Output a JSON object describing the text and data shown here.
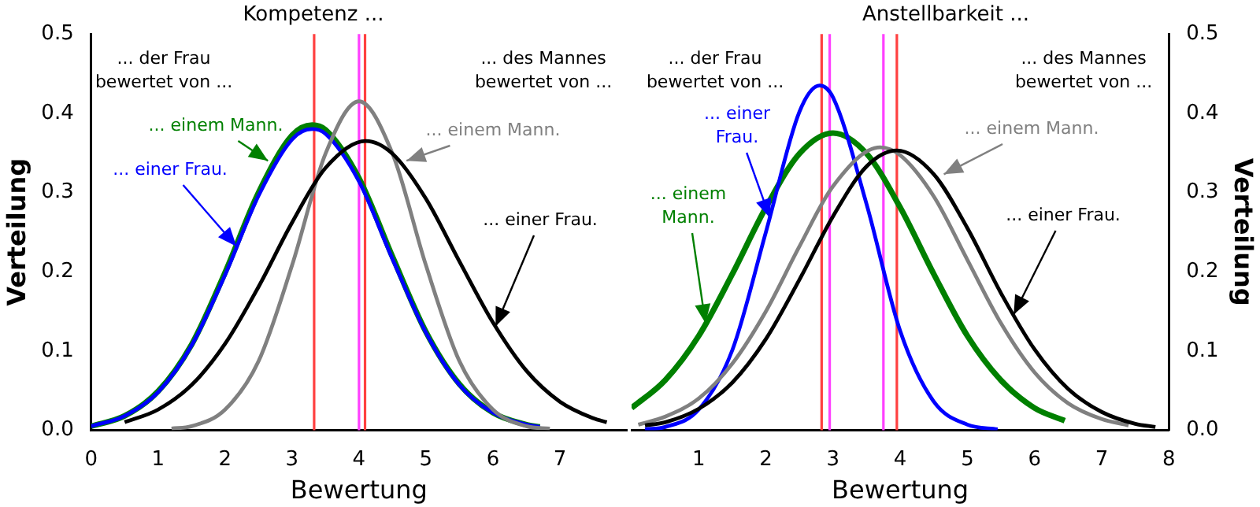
{
  "chart_data": [
    {
      "type": "line",
      "title": "Kompetenz ...",
      "xlabel": "Bewertung",
      "ylabel": "Verteilung",
      "xlim": [
        0,
        8
      ],
      "xticks": [
        0,
        1,
        2,
        3,
        4,
        5,
        6,
        7
      ],
      "ylim": [
        0,
        0.5
      ],
      "yticks": [
        {
          "value": 0,
          "label": "0.0"
        },
        0.1,
        0.2,
        0.3,
        0.4,
        0.5
      ],
      "grid": false,
      "legend": false,
      "series": [
        {
          "color": "#008000",
          "x": [
            0,
            0.5,
            1,
            1.5,
            2,
            2.5,
            3,
            3.3,
            3.5,
            4,
            4.5,
            5,
            5.5,
            6,
            6.5,
            6.7
          ],
          "values": [
            0.005,
            0.018,
            0.049,
            0.108,
            0.199,
            0.3,
            0.372,
            0.385,
            0.379,
            0.318,
            0.219,
            0.124,
            0.058,
            0.022,
            0.007,
            0.004
          ]
        },
        {
          "color": "#0000ff",
          "x": [
            0,
            0.5,
            1,
            1.5,
            2,
            2.5,
            3,
            3.3,
            3.5,
            4,
            4.5,
            5,
            5.5,
            6,
            6.5,
            6.7
          ],
          "values": [
            0.005,
            0.018,
            0.048,
            0.107,
            0.196,
            0.296,
            0.367,
            0.38,
            0.374,
            0.314,
            0.216,
            0.123,
            0.057,
            0.022,
            0.007,
            0.004
          ]
        },
        {
          "color": "#808080",
          "x": [
            1.2,
            1.5,
            2,
            2.5,
            3,
            3.5,
            4,
            4.5,
            5,
            5.5,
            6,
            6.5,
            6.85
          ],
          "values": [
            0.002,
            0.005,
            0.026,
            0.087,
            0.208,
            0.349,
            0.415,
            0.349,
            0.208,
            0.087,
            0.026,
            0.005,
            0.002
          ]
        },
        {
          "color": "#000000",
          "x": [
            0.5,
            1,
            1.5,
            2,
            2.5,
            3,
            3.5,
            4.1,
            4.5,
            5,
            5.5,
            6,
            6.5,
            7,
            7.5,
            7.7
          ],
          "values": [
            0.01,
            0.026,
            0.057,
            0.109,
            0.181,
            0.262,
            0.331,
            0.365,
            0.349,
            0.292,
            0.213,
            0.136,
            0.075,
            0.036,
            0.015,
            0.01
          ]
        }
      ],
      "ref_lines": [
        {
          "axis": "x",
          "value": 3.33,
          "color": "#ff4040"
        },
        {
          "axis": "x",
          "value": 4.0,
          "color": "#ff40ff"
        },
        {
          "axis": "x",
          "value": 4.09,
          "color": "#ff4040"
        }
      ],
      "annotations": [
        "... der Frau bewertet von ...",
        {
          "text": "... einem Mann.",
          "x": 2.64,
          "y": 0.34
        },
        {
          "text": "... einer Frau.",
          "x": 2.17,
          "y": 0.232
        },
        "... des Mannes bewertet von ...",
        {
          "text": "... einem Mann.",
          "x": 4.71,
          "y": 0.34
        },
        {
          "text": "... einer Frau.",
          "x": 6.04,
          "y": 0.131
        }
      ]
    },
    {
      "type": "line",
      "title": "Anstellbarkeit ...",
      "xlabel": "Bewertung",
      "ylabel": "Verteilung",
      "xlim": [
        0,
        8
      ],
      "xticks": [
        1,
        2,
        3,
        4,
        5,
        6,
        7,
        8
      ],
      "ylim": [
        0,
        0.5
      ],
      "yticks": [
        {
          "value": 0,
          "label": "0.0"
        },
        0.1,
        0.2,
        0.3,
        0.4,
        0.5
      ],
      "grid": false,
      "legend": false,
      "series": [
        {
          "color": "#008000",
          "x": [
            0,
            0.5,
            1,
            1.5,
            2,
            2.5,
            3,
            3.5,
            4,
            4.5,
            5,
            5.5,
            6,
            6.45
          ],
          "values": [
            0.028,
            0.063,
            0.119,
            0.197,
            0.281,
            0.349,
            0.375,
            0.349,
            0.281,
            0.197,
            0.119,
            0.063,
            0.028,
            0.012
          ]
        },
        {
          "color": "#0000ff",
          "x": [
            0.2,
            0.5,
            1,
            1.5,
            2,
            2.5,
            2.8,
            3,
            3.5,
            4,
            4.5,
            5,
            5.45
          ],
          "values": [
            0.001,
            0.004,
            0.026,
            0.101,
            0.25,
            0.402,
            0.435,
            0.42,
            0.285,
            0.125,
            0.036,
            0.007,
            0.001
          ]
        },
        {
          "color": "#808080",
          "x": [
            0.1,
            0.5,
            1,
            1.5,
            2,
            2.5,
            3,
            3.7,
            4,
            4.5,
            5,
            5.5,
            6,
            6.5,
            7,
            7.4
          ],
          "values": [
            0.007,
            0.017,
            0.04,
            0.084,
            0.15,
            0.232,
            0.308,
            0.357,
            0.347,
            0.295,
            0.215,
            0.135,
            0.073,
            0.034,
            0.014,
            0.006
          ]
        },
        {
          "color": "#000000",
          "x": [
            0.2,
            0.5,
            1,
            1.5,
            2,
            2.5,
            3,
            3.5,
            3.95,
            4.5,
            5,
            5.5,
            6,
            6.5,
            7,
            7.5,
            7.8
          ],
          "values": [
            0.006,
            0.01,
            0.027,
            0.06,
            0.115,
            0.19,
            0.27,
            0.333,
            0.353,
            0.323,
            0.255,
            0.173,
            0.102,
            0.052,
            0.023,
            0.008,
            0.004
          ]
        }
      ],
      "ref_lines": [
        {
          "axis": "x",
          "value": 2.83,
          "color": "#ff4040"
        },
        {
          "axis": "x",
          "value": 2.95,
          "color": "#ff40ff"
        },
        {
          "axis": "x",
          "value": 3.75,
          "color": "#ff40ff"
        },
        {
          "axis": "x",
          "value": 3.95,
          "color": "#ff4040"
        }
      ],
      "annotations": [
        "... der Frau bewertet von ...",
        {
          "text": "... einer Frau.",
          "x": 2.06,
          "y": 0.268
        },
        {
          "text": "... einem Mann.",
          "x": 1.1,
          "y": 0.135
        },
        "... des Mannes bewertet von ...",
        {
          "text": "... einem Mann.",
          "x": 4.65,
          "y": 0.323
        },
        {
          "text": "... einer Frau.",
          "x": 5.69,
          "y": 0.146
        }
      ]
    }
  ]
}
